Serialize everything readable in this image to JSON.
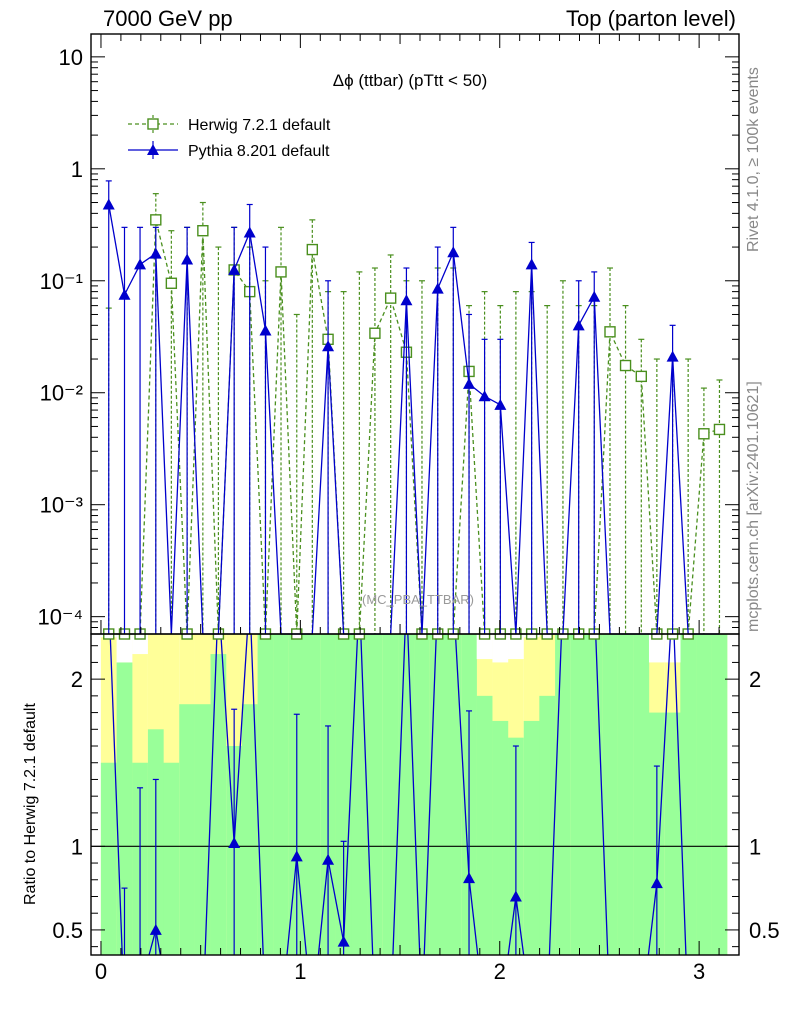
{
  "header": {
    "left": "7000 GeV pp",
    "right": "Top (parton level)"
  },
  "side_labels": {
    "top": "Rivet 4.1.0, ≥ 100k events",
    "bottom": "mcplots.cern.ch [arXiv:2401.10621]"
  },
  "colors": {
    "herwig": "#4a8f1e",
    "pythia": "#0000cc",
    "band_green": "#99ff99",
    "band_yellow": "#ffff99"
  },
  "chart_data": [
    {
      "type": "line",
      "title": "Δϕ (ttbar) (pTtt < 50)",
      "watermark": "(MC_PBA_TTBAR)",
      "yscale": "log",
      "xlim": [
        -0.05,
        3.2
      ],
      "ylim": [
        7e-05,
        16
      ],
      "xticks": [
        0,
        1,
        2,
        3
      ],
      "yticks": [
        {
          "value": 10,
          "label": "10"
        },
        {
          "value": 1,
          "label": "1"
        },
        {
          "value": 0.1,
          "label": "10⁻¹"
        },
        {
          "value": 0.01,
          "label": "10⁻²"
        },
        {
          "value": 0.001,
          "label": "10⁻³"
        },
        {
          "value": 0.0001,
          "label": "10⁻⁴"
        }
      ],
      "legend": [
        {
          "name": "Herwig 7.2.1 default",
          "style": "dashed-open-square"
        },
        {
          "name": "Pythia 8.201 default",
          "style": "solid-filled-triangle"
        }
      ],
      "series": [
        {
          "name": "Herwig 7.2.1 default",
          "x": [
            0.039,
            0.118,
            0.196,
            0.275,
            0.353,
            0.432,
            0.511,
            0.589,
            0.668,
            0.746,
            0.825,
            0.903,
            0.982,
            1.06,
            1.139,
            1.217,
            1.296,
            1.374,
            1.453,
            1.532,
            1.61,
            1.689,
            1.767,
            1.846,
            1.924,
            2.003,
            2.081,
            2.16,
            2.238,
            2.317,
            2.396,
            2.474,
            2.553,
            2.631,
            2.71,
            2.788,
            2.867,
            2.945,
            3.024,
            3.102
          ],
          "values": [
            0,
            0,
            0,
            0.35,
            0.095,
            0,
            0.28,
            0,
            0.125,
            0.08,
            0,
            0.12,
            0,
            0.19,
            0.03,
            0,
            0,
            0.034,
            0.07,
            0.023,
            0,
            0,
            0,
            0.0155,
            0,
            0,
            0,
            0,
            0,
            0,
            0,
            0,
            0.035,
            0.0175,
            0.014,
            0,
            0,
            0,
            0.0043,
            0.0047
          ],
          "err_hi": [
            0.057,
            0,
            0,
            0.6,
            0.28,
            0.3,
            0.5,
            0.2,
            0.3,
            0.2,
            0.1,
            0.3,
            0.05,
            0.35,
            0.08,
            0.08,
            0.12,
            0.13,
            0.17,
            0.1,
            0.1,
            0.13,
            0.13,
            0.06,
            0.08,
            0.06,
            0.08,
            0.08,
            0.06,
            0.1,
            0.06,
            0.06,
            0.13,
            0.06,
            0.03,
            0.02,
            0.02,
            0.02,
            0.011,
            0.013
          ]
        },
        {
          "name": "Pythia 8.201 default",
          "x": [
            0.039,
            0.118,
            0.196,
            0.275,
            0.353,
            0.432,
            0.511,
            0.589,
            0.668,
            0.746,
            0.825,
            0.903,
            0.982,
            1.06,
            1.139,
            1.217,
            1.296,
            1.374,
            1.453,
            1.532,
            1.61,
            1.689,
            1.767,
            1.846,
            1.924,
            2.003,
            2.081,
            2.16,
            2.238,
            2.317,
            2.396,
            2.474,
            2.553,
            2.631,
            2.71,
            2.788,
            2.867,
            2.945,
            3.024,
            3.102
          ],
          "values": [
            0.48,
            0.075,
            0.14,
            0.175,
            0,
            0.155,
            0,
            0,
            0.125,
            0.27,
            0.036,
            0,
            0,
            0,
            0.026,
            0,
            0,
            0,
            0,
            0.067,
            0,
            0.085,
            0.18,
            0.012,
            0.0093,
            0.0078,
            0,
            0.14,
            0,
            0,
            0.04,
            0.072,
            0,
            0,
            0,
            0,
            0.021,
            0,
            0,
            0
          ],
          "err_hi": [
            0.78,
            0.3,
            0.3,
            0.3,
            0,
            0.3,
            0,
            0,
            0.3,
            0.48,
            0.2,
            0,
            0,
            0,
            0.1,
            0,
            0,
            0,
            0,
            0.13,
            0,
            0.2,
            0.3,
            0.05,
            0.03,
            0.03,
            0,
            0.22,
            0,
            0,
            0.1,
            0.12,
            0,
            0,
            0,
            0,
            0.04,
            0,
            0,
            0
          ]
        }
      ]
    },
    {
      "type": "line",
      "ylabel": "Ratio to Herwig 7.2.1 default",
      "xlim": [
        -0.05,
        3.2
      ],
      "ylim": [
        0.35,
        2.27
      ],
      "xticks": [
        0,
        1,
        2,
        3
      ],
      "yticks": [
        {
          "value": 0.5,
          "label": "0.5"
        },
        {
          "value": 1,
          "label": "1"
        },
        {
          "value": 2,
          "label": "2"
        }
      ],
      "reference_line": 1,
      "band_yellow_low": [
        1.5,
        2.1,
        1.5,
        1.7,
        1.5,
        1.85,
        1.85,
        2.15,
        1.6,
        1.85,
        2.27,
        2.27,
        2.27,
        2.27,
        2.27,
        2.27,
        2.27,
        2.27,
        2.27,
        2.27,
        2.27,
        2.27,
        2.27,
        2.27,
        1.9,
        1.75,
        1.65,
        1.75,
        1.9,
        2.27,
        2.27,
        2.27,
        2.27,
        2.27,
        2.27,
        1.8,
        1.8,
        2.27,
        2.27,
        2.27
      ],
      "band_green_low": [
        2.25,
        2.1,
        2.15,
        2.27,
        2.27,
        2.27,
        2.27,
        2.27,
        2.27,
        2.27,
        2.27,
        2.27,
        2.27,
        2.27,
        2.27,
        2.27,
        2.27,
        2.27,
        2.27,
        2.27,
        2.27,
        2.27,
        2.27,
        2.27,
        2.12,
        2.1,
        2.12,
        2.25,
        2.27,
        2.27,
        2.27,
        2.27,
        2.27,
        2.27,
        2.27,
        2.1,
        2.1,
        2.27,
        2.27,
        2.27
      ],
      "pythia_ratio": [
        2.5,
        0.0,
        0.15,
        0.5,
        0.0,
        0.0,
        0.0,
        2.5,
        1.02,
        2.5,
        0.0,
        0.0,
        0.94,
        0.0,
        0.92,
        0.43,
        2.5,
        0.0,
        0.0,
        2.5,
        0.0,
        2.5,
        2.5,
        0.81,
        0.0,
        0.0,
        0.7,
        0.0,
        0.0,
        2.5,
        2.5,
        2.5,
        0.0,
        0.0,
        0.0,
        0.78,
        2.5,
        0.0,
        0.0,
        0.0
      ],
      "pythia_ratio_err": [
        0,
        0.75,
        1.2,
        0.9,
        0,
        0,
        0,
        0,
        0.8,
        0,
        0,
        0,
        0.85,
        0,
        0.8,
        0.6,
        0,
        0,
        0,
        0,
        0,
        0,
        0,
        1.0,
        0,
        0,
        0.9,
        0,
        0,
        0,
        0,
        0,
        0,
        0,
        0,
        0.7,
        0,
        0,
        0,
        0
      ]
    }
  ]
}
